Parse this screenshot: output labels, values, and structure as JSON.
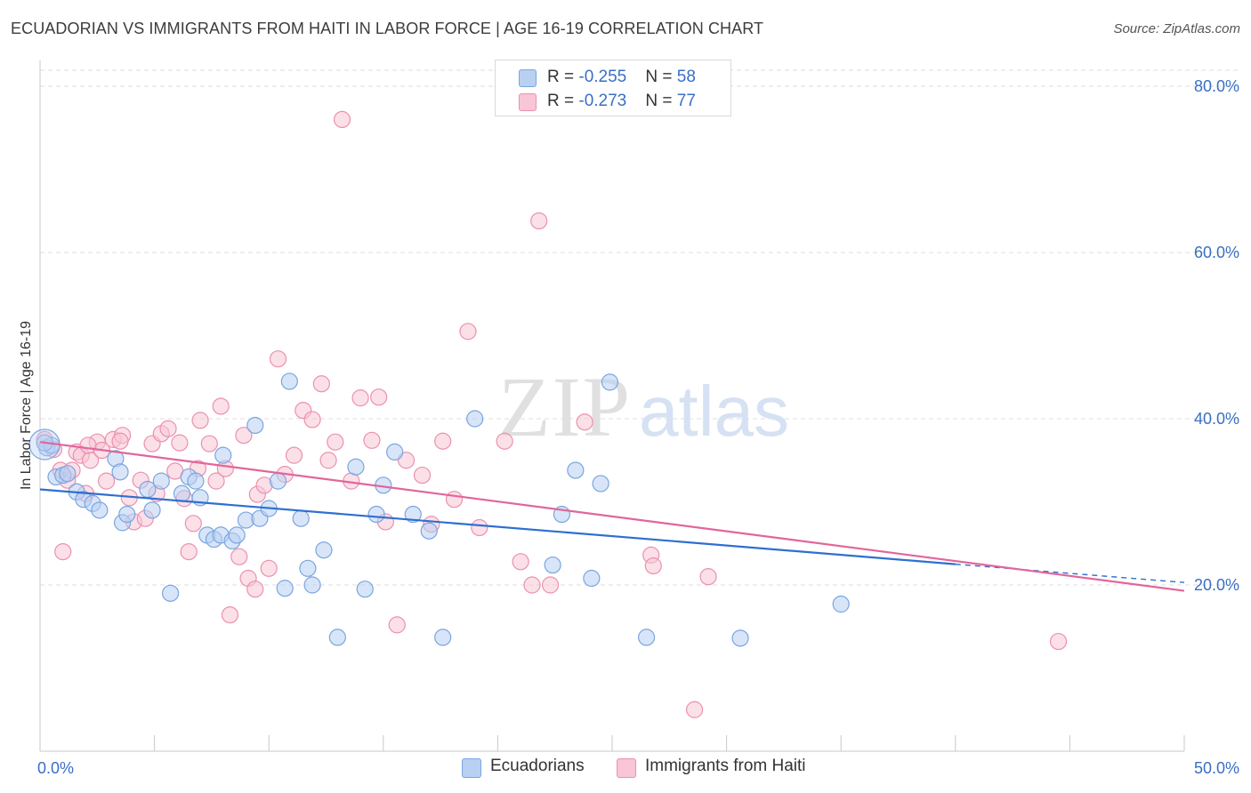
{
  "header": {
    "title": "ECUADORIAN VS IMMIGRANTS FROM HAITI IN LABOR FORCE | AGE 16-19 CORRELATION CHART",
    "source": "Source: ZipAtlas.com"
  },
  "watermark": {
    "zip": "ZIP",
    "atlas": "atlas"
  },
  "legend_stats": [
    {
      "r_label": "R = ",
      "r_value": "-0.255",
      "n_label": "N = ",
      "n_value": "58"
    },
    {
      "r_label": "R = ",
      "r_value": "-0.273",
      "n_label": "N = ",
      "n_value": "77"
    }
  ],
  "colors": {
    "blue_fill": "#b8d0f2",
    "blue_stroke": "#7aa5e0",
    "blue_line": "#2e6fd0",
    "pink_fill": "#f8c6d6",
    "pink_stroke": "#eb90ae",
    "pink_line": "#e2659a",
    "axis_text": "#3a6fc4",
    "grid": "#dcdcdc"
  },
  "chart_data": {
    "type": "scatter",
    "title": "ECUADORIAN VS IMMIGRANTS FROM HAITI IN LABOR FORCE | AGE 16-19 CORRELATION CHART",
    "xlabel": "",
    "ylabel": "In Labor Force | Age 16-19",
    "xlim": [
      0,
      50
    ],
    "ylim": [
      0,
      82
    ],
    "x_tick_labels": [
      {
        "value": 0,
        "label": "0.0%"
      },
      {
        "value": 50,
        "label": "50.0%"
      }
    ],
    "y_tick_labels": [
      {
        "value": 20,
        "label": "20.0%"
      },
      {
        "value": 40,
        "label": "40.0%"
      },
      {
        "value": 60,
        "label": "60.0%"
      },
      {
        "value": 80,
        "label": "80.0%"
      }
    ],
    "grid": true,
    "legend_position": "bottom",
    "series": [
      {
        "name": "Ecuadorians",
        "color": "#7aa5e0",
        "trend": {
          "x": [
            0,
            40
          ],
          "y": [
            31.5,
            22.5
          ],
          "dashed_to": {
            "x": 50,
            "y": 20.3
          }
        },
        "points": [
          [
            0.3,
            36.5
          ],
          [
            0.5,
            36.8
          ],
          [
            0.7,
            33.0
          ],
          [
            1.0,
            33.2
          ],
          [
            1.2,
            33.4
          ],
          [
            1.6,
            31.2
          ],
          [
            1.9,
            30.3
          ],
          [
            2.3,
            29.8
          ],
          [
            2.6,
            29.0
          ],
          [
            3.3,
            35.2
          ],
          [
            3.5,
            33.6
          ],
          [
            3.6,
            27.5
          ],
          [
            3.8,
            28.5
          ],
          [
            4.7,
            31.5
          ],
          [
            4.9,
            29.0
          ],
          [
            5.3,
            32.5
          ],
          [
            5.7,
            19.0
          ],
          [
            6.2,
            31.0
          ],
          [
            6.5,
            33.0
          ],
          [
            6.8,
            32.5
          ],
          [
            7.0,
            30.5
          ],
          [
            7.3,
            26.0
          ],
          [
            7.6,
            25.5
          ],
          [
            7.9,
            26.0
          ],
          [
            8.0,
            35.6
          ],
          [
            8.4,
            25.3
          ],
          [
            8.6,
            26.0
          ],
          [
            9.0,
            27.8
          ],
          [
            9.4,
            39.2
          ],
          [
            9.6,
            28.0
          ],
          [
            10.0,
            29.2
          ],
          [
            10.4,
            32.5
          ],
          [
            10.7,
            19.6
          ],
          [
            10.9,
            44.5
          ],
          [
            11.4,
            28.0
          ],
          [
            11.7,
            22.0
          ],
          [
            11.9,
            20.0
          ],
          [
            12.4,
            24.2
          ],
          [
            13.0,
            13.7
          ],
          [
            13.8,
            34.2
          ],
          [
            14.2,
            19.5
          ],
          [
            14.7,
            28.5
          ],
          [
            15.0,
            32.0
          ],
          [
            15.5,
            36.0
          ],
          [
            16.3,
            28.5
          ],
          [
            17.0,
            26.5
          ],
          [
            17.6,
            13.7
          ],
          [
            19.0,
            40.0
          ],
          [
            22.4,
            22.4
          ],
          [
            22.8,
            28.5
          ],
          [
            23.4,
            33.8
          ],
          [
            24.1,
            20.8
          ],
          [
            24.5,
            32.2
          ],
          [
            24.9,
            44.4
          ],
          [
            26.5,
            13.7
          ],
          [
            30.6,
            13.6
          ],
          [
            35.0,
            17.7
          ],
          [
            0.2,
            37.1
          ]
        ]
      },
      {
        "name": "Immigrants from Haiti",
        "color": "#eb90ae",
        "trend": {
          "x": [
            0,
            50
          ],
          "y": [
            37.2,
            19.3
          ]
        },
        "points": [
          [
            0.2,
            37.5
          ],
          [
            0.6,
            36.3
          ],
          [
            0.9,
            33.8
          ],
          [
            1.0,
            24.0
          ],
          [
            1.2,
            32.6
          ],
          [
            1.4,
            33.8
          ],
          [
            1.6,
            36.0
          ],
          [
            1.8,
            35.6
          ],
          [
            2.0,
            31.0
          ],
          [
            2.2,
            35.0
          ],
          [
            2.5,
            37.2
          ],
          [
            2.7,
            36.2
          ],
          [
            2.9,
            32.5
          ],
          [
            3.2,
            37.5
          ],
          [
            3.6,
            38.0
          ],
          [
            3.9,
            30.5
          ],
          [
            4.1,
            27.6
          ],
          [
            4.4,
            32.6
          ],
          [
            4.6,
            28.0
          ],
          [
            4.9,
            37.0
          ],
          [
            5.1,
            31.0
          ],
          [
            5.3,
            38.2
          ],
          [
            5.6,
            38.8
          ],
          [
            5.9,
            33.7
          ],
          [
            6.1,
            37.1
          ],
          [
            6.3,
            30.4
          ],
          [
            6.5,
            24.0
          ],
          [
            6.7,
            27.4
          ],
          [
            6.9,
            34.0
          ],
          [
            7.0,
            39.8
          ],
          [
            7.4,
            37.0
          ],
          [
            7.7,
            32.5
          ],
          [
            7.9,
            41.5
          ],
          [
            8.1,
            34.0
          ],
          [
            8.3,
            16.4
          ],
          [
            8.7,
            23.4
          ],
          [
            8.9,
            38.0
          ],
          [
            9.1,
            20.8
          ],
          [
            9.4,
            19.5
          ],
          [
            9.5,
            30.9
          ],
          [
            9.8,
            32.0
          ],
          [
            10.0,
            22.0
          ],
          [
            10.4,
            47.2
          ],
          [
            10.7,
            33.3
          ],
          [
            11.1,
            35.6
          ],
          [
            11.5,
            41.0
          ],
          [
            11.9,
            39.9
          ],
          [
            12.3,
            44.2
          ],
          [
            12.6,
            35.0
          ],
          [
            12.9,
            37.2
          ],
          [
            13.2,
            76.0
          ],
          [
            13.6,
            32.5
          ],
          [
            14.0,
            42.5
          ],
          [
            14.5,
            37.4
          ],
          [
            14.8,
            42.6
          ],
          [
            15.1,
            27.6
          ],
          [
            15.6,
            15.2
          ],
          [
            16.0,
            35.0
          ],
          [
            16.7,
            33.2
          ],
          [
            17.1,
            27.3
          ],
          [
            17.6,
            37.3
          ],
          [
            18.1,
            30.3
          ],
          [
            18.7,
            50.5
          ],
          [
            19.2,
            26.9
          ],
          [
            20.3,
            37.3
          ],
          [
            21.0,
            22.8
          ],
          [
            21.5,
            20.0
          ],
          [
            21.8,
            63.8
          ],
          [
            22.3,
            20.0
          ],
          [
            23.8,
            39.6
          ],
          [
            26.7,
            23.6
          ],
          [
            26.8,
            22.3
          ],
          [
            28.6,
            5.0
          ],
          [
            29.2,
            21.0
          ],
          [
            44.5,
            13.2
          ],
          [
            3.5,
            37.3
          ],
          [
            2.1,
            36.8
          ]
        ]
      }
    ]
  },
  "legend": {
    "items": [
      {
        "label": "Ecuadorians"
      },
      {
        "label": "Immigrants from Haiti"
      }
    ]
  }
}
